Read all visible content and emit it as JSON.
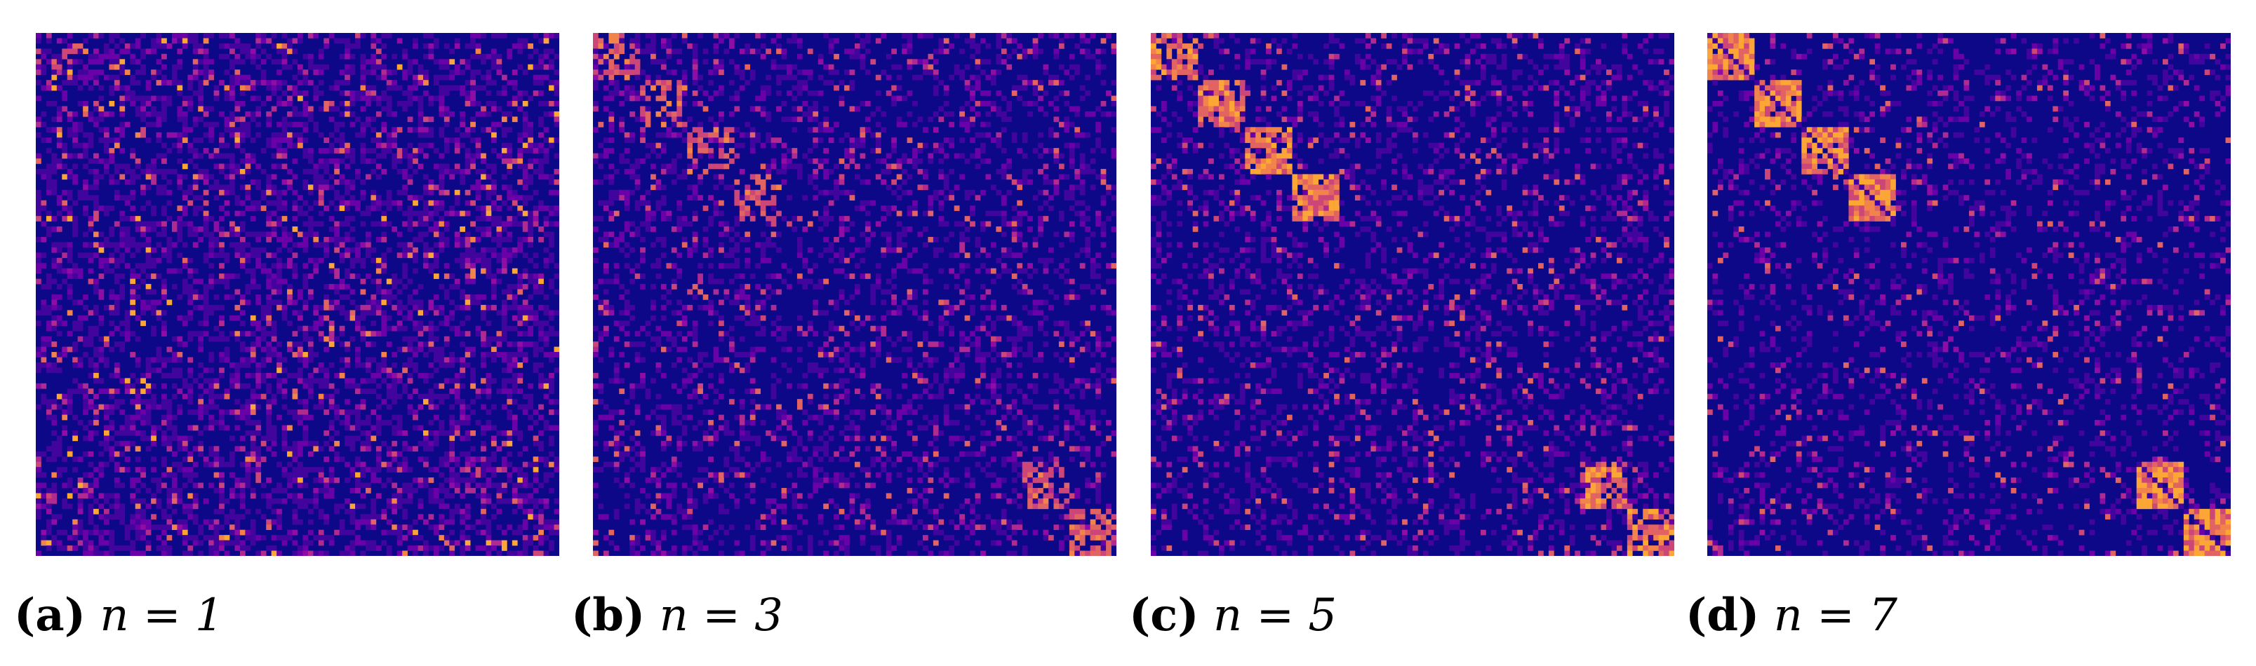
{
  "panels": [
    {
      "label": "(a)",
      "caption": "n = 1"
    },
    {
      "label": "(b)",
      "caption": "n = 3"
    },
    {
      "label": "(c)",
      "caption": "n = 5"
    },
    {
      "label": "(d)",
      "caption": "n = 7"
    }
  ]
}
